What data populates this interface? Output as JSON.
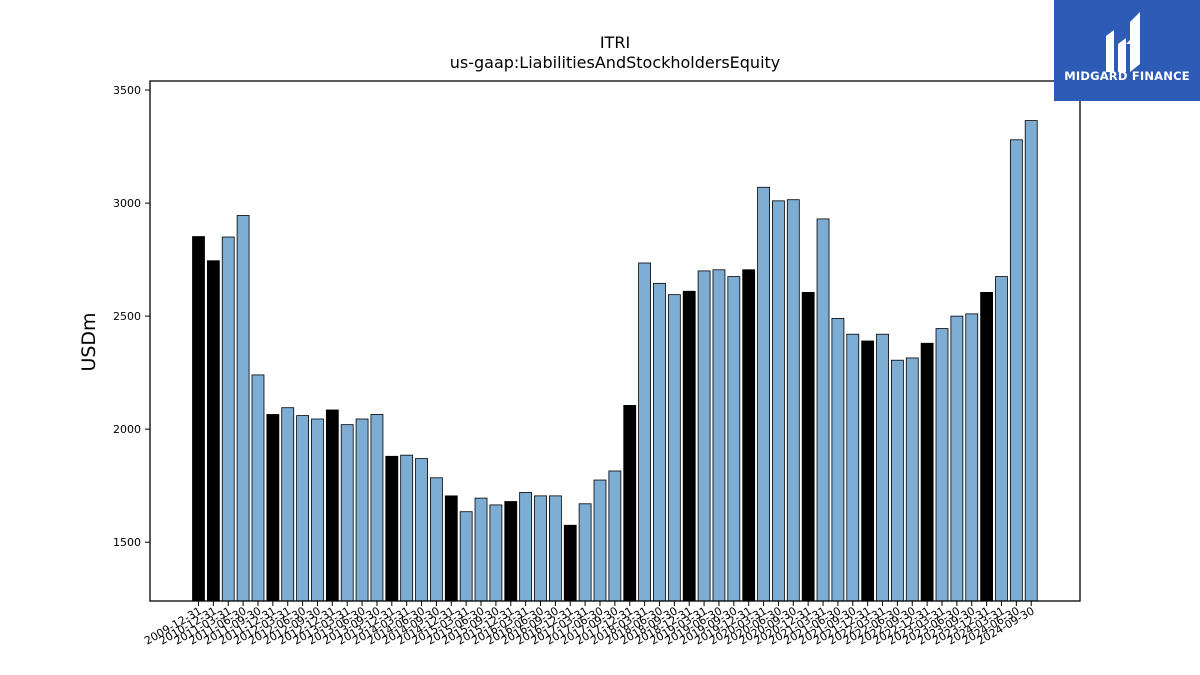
{
  "brand": {
    "name": "MIDGARD FINANCE",
    "logo_color": "#2d5bb5"
  },
  "chart_data": {
    "type": "bar",
    "title": "ITRI",
    "subtitle": "us-gaap:LiabilitiesAndStockholdersEquity",
    "xlabel": "",
    "ylabel": "USDm",
    "ylim": [
      1240,
      3540
    ],
    "yticks": [
      1500,
      2000,
      2500,
      3000,
      3500
    ],
    "colors": {
      "annual": "#000000",
      "quarterly": "#7eadd4"
    },
    "categories": [
      "2009-12-31",
      "2010-12-31",
      "2011-03-31",
      "2011-06-30",
      "2011-09-30",
      "2011-12-31",
      "2012-03-31",
      "2012-06-30",
      "2012-09-30",
      "2012-12-31",
      "2013-03-31",
      "2013-06-30",
      "2013-09-30",
      "2013-12-31",
      "2014-03-31",
      "2014-06-30",
      "2014-09-30",
      "2014-12-31",
      "2015-03-31",
      "2015-06-30",
      "2015-09-30",
      "2015-12-31",
      "2016-03-31",
      "2016-06-30",
      "2016-09-30",
      "2016-12-31",
      "2017-03-31",
      "2017-06-30",
      "2017-09-30",
      "2017-12-31",
      "2018-03-31",
      "2018-06-30",
      "2018-09-30",
      "2018-12-31",
      "2019-03-31",
      "2019-06-30",
      "2019-09-30",
      "2019-12-31",
      "2020-03-31",
      "2020-06-30",
      "2020-09-30",
      "2020-12-31",
      "2021-03-31",
      "2021-06-30",
      "2021-09-30",
      "2021-12-31",
      "2022-03-31",
      "2022-06-30",
      "2022-09-30",
      "2022-12-31",
      "2023-03-31",
      "2023-06-30",
      "2023-09-30",
      "2023-12-31",
      "2024-03-31",
      "2024-06-30",
      "2024-09-30"
    ],
    "values": [
      2852,
      2745,
      2850,
      2945,
      2240,
      2065,
      2095,
      2060,
      2045,
      2085,
      2020,
      2045,
      2065,
      1880,
      1885,
      1870,
      1785,
      1705,
      1635,
      1695,
      1665,
      1680,
      1720,
      1705,
      1705,
      1575,
      1670,
      1775,
      1815,
      2105,
      2735,
      2645,
      2595,
      2610,
      2700,
      2705,
      2675,
      2705,
      3070,
      3010,
      3015,
      2605,
      2930,
      2490,
      2420,
      2390,
      2420,
      2305,
      2315,
      2380,
      2445,
      2500,
      2510,
      2605,
      2675,
      3280,
      3365
    ],
    "annual_flags": [
      1,
      1,
      0,
      0,
      0,
      1,
      0,
      0,
      0,
      1,
      0,
      0,
      0,
      1,
      0,
      0,
      0,
      1,
      0,
      0,
      0,
      1,
      0,
      0,
      0,
      1,
      0,
      0,
      0,
      1,
      0,
      0,
      0,
      1,
      0,
      0,
      0,
      1,
      0,
      0,
      0,
      1,
      0,
      0,
      0,
      1,
      0,
      0,
      0,
      1,
      0,
      0,
      0,
      1,
      0,
      0,
      0
    ]
  }
}
